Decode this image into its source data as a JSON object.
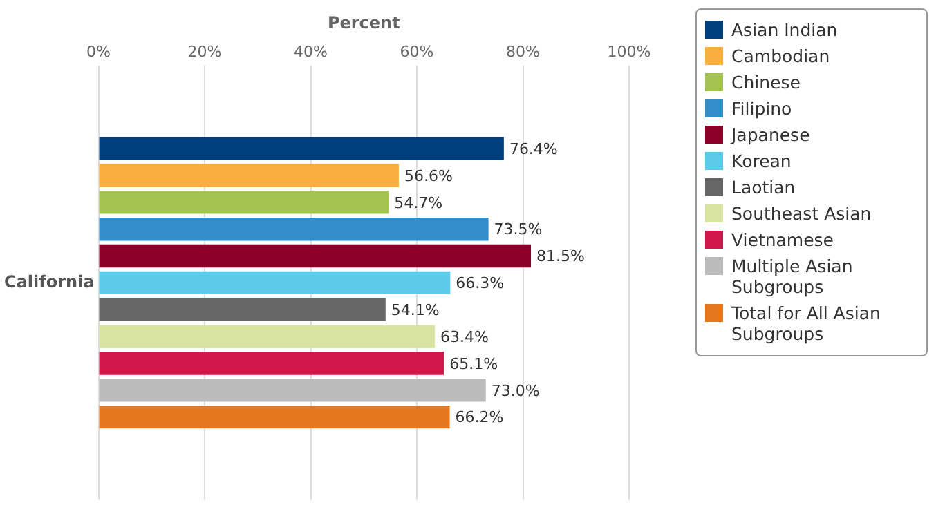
{
  "chart_data": {
    "type": "bar",
    "orientation": "horizontal",
    "xlabel": "Percent",
    "categories": [
      "California"
    ],
    "xlim": [
      0,
      100
    ],
    "xticks": [
      {
        "value": 0,
        "label": "0%"
      },
      {
        "value": 20,
        "label": "20%"
      },
      {
        "value": 40,
        "label": "40%"
      },
      {
        "value": 60,
        "label": "60%"
      },
      {
        "value": 80,
        "label": "80%"
      },
      {
        "value": 100,
        "label": "100%"
      }
    ],
    "grid": "x",
    "legend": "top right",
    "series": [
      {
        "name": "Asian Indian",
        "color": "#003f7d",
        "values": [
          76.4
        ],
        "value_labels": [
          "76.4%"
        ]
      },
      {
        "name": "Cambodian",
        "color": "#f9ae3f",
        "values": [
          56.6
        ],
        "value_labels": [
          "56.6%"
        ]
      },
      {
        "name": "Chinese",
        "color": "#a3c451",
        "values": [
          54.7
        ],
        "value_labels": [
          "54.7%"
        ]
      },
      {
        "name": "Filipino",
        "color": "#338fcb",
        "values": [
          73.5
        ],
        "value_labels": [
          "73.5%"
        ]
      },
      {
        "name": "Japanese",
        "color": "#8b0029",
        "values": [
          81.5
        ],
        "value_labels": [
          "81.5%"
        ]
      },
      {
        "name": "Korean",
        "color": "#5ccae8",
        "values": [
          66.3
        ],
        "value_labels": [
          "66.3%"
        ]
      },
      {
        "name": "Laotian",
        "color": "#666666",
        "values": [
          54.1
        ],
        "value_labels": [
          "54.1%"
        ]
      },
      {
        "name": "Southeast Asian",
        "color": "#d9e4a3",
        "values": [
          63.4
        ],
        "value_labels": [
          "63.4%"
        ]
      },
      {
        "name": "Vietnamese",
        "color": "#d0164a",
        "values": [
          65.1
        ],
        "value_labels": [
          "65.1%"
        ]
      },
      {
        "name": "Multiple Asian Subgroups",
        "color": "#bbbbbb",
        "values": [
          73.0
        ],
        "value_labels": [
          "73.0%"
        ]
      },
      {
        "name": "Total for All Asian Subgroups",
        "color": "#e5781e",
        "values": [
          66.2
        ],
        "value_labels": [
          "66.2%"
        ]
      }
    ]
  }
}
